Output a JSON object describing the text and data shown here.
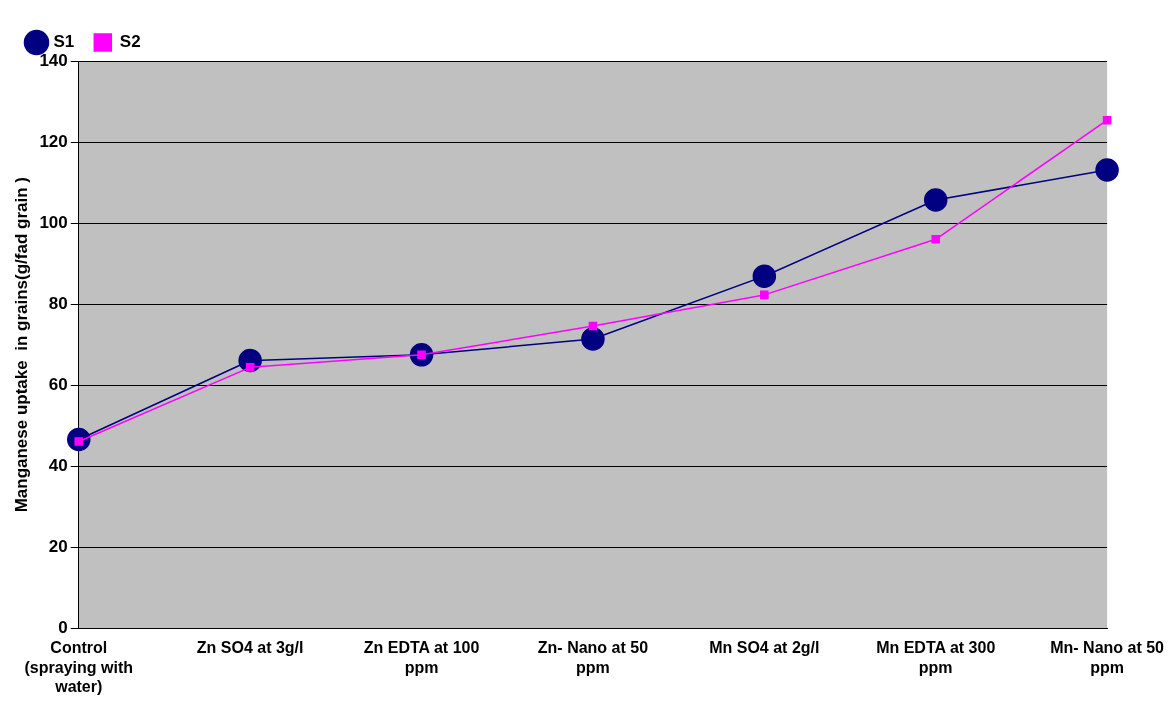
{
  "chart_data": {
    "type": "line",
    "ylabel": "Manganese uptake  in grains(g/fad grain )",
    "categories": [
      "Control (spraying with water)",
      "Zn SO4  at 3g/l",
      "Zn EDTA at 100 ppm",
      "Zn- Nano at 50 ppm",
      "Mn SO4  at 2g/l",
      "Mn EDTA at 300 ppm",
      "Mn- Nano at 50 ppm"
    ],
    "series": [
      {
        "name": "S1",
        "color": "#000080",
        "marker": "circle",
        "values": [
          46.6,
          66.1,
          67.5,
          71.4,
          86.9,
          105.7,
          113.1
        ]
      },
      {
        "name": "S2",
        "color": "#ff00ff",
        "marker": "square",
        "values": [
          46.1,
          64.4,
          67.5,
          74.6,
          82.3,
          96.0,
          125.4
        ]
      }
    ],
    "ylim": [
      0,
      140
    ],
    "yticks": [
      0,
      20,
      40,
      60,
      80,
      100,
      120,
      140
    ],
    "grid": "y",
    "legend": "top left",
    "line_style": "solid"
  }
}
